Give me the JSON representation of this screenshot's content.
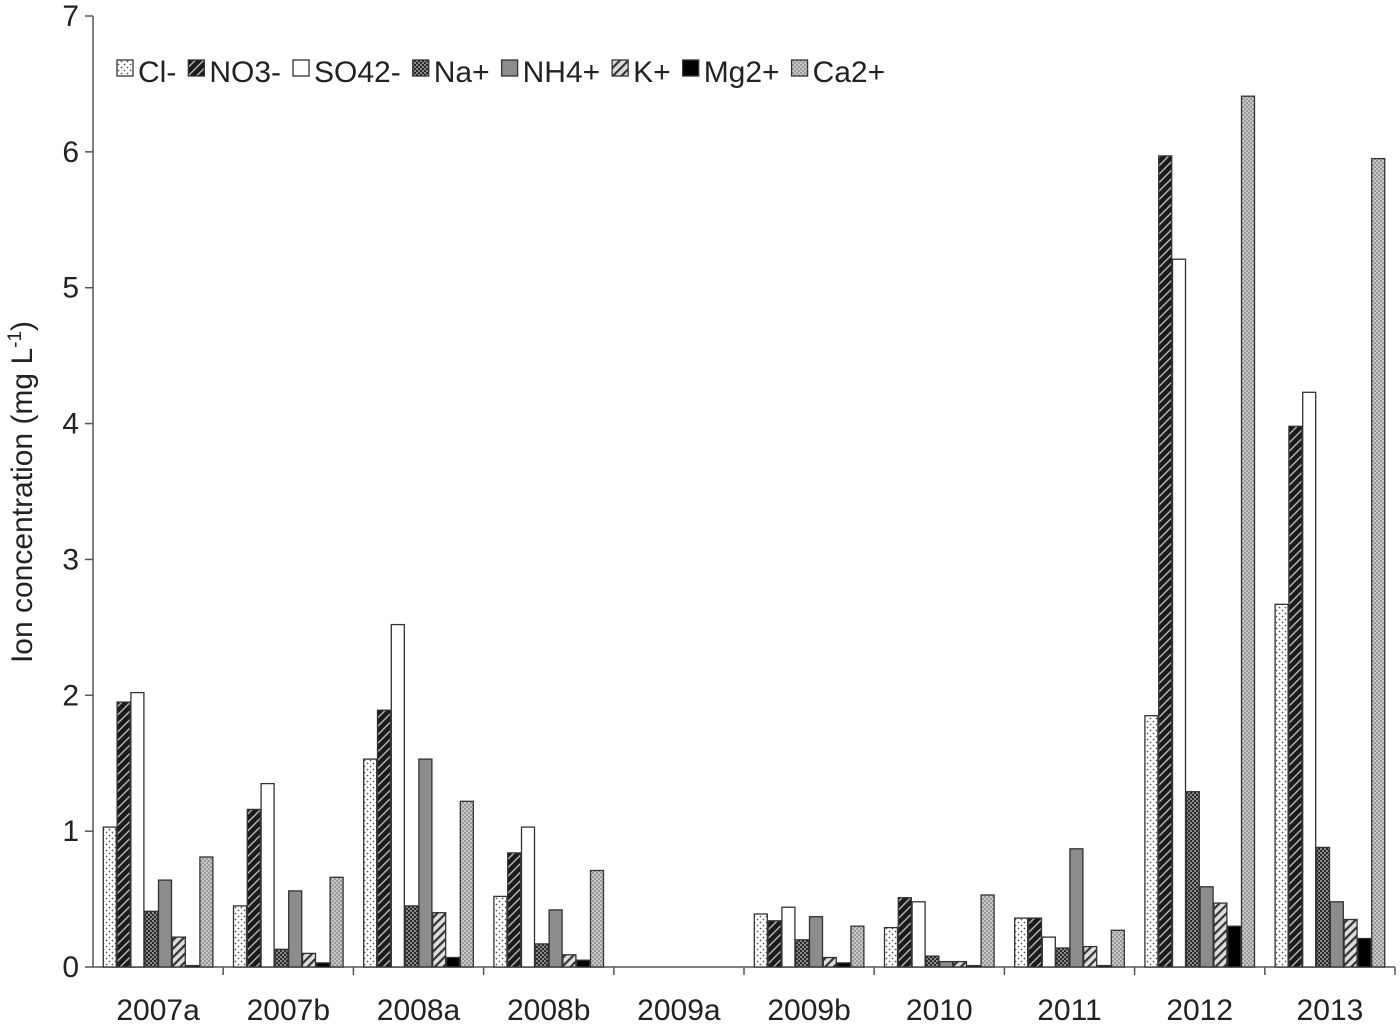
{
  "chart_data": {
    "type": "bar",
    "ylabel": "Ion concentration (mg L",
    "ylabel_sup": "-1",
    "ylabel_close": ")",
    "ylim": [
      0,
      7
    ],
    "yticks": [
      0,
      1,
      2,
      3,
      4,
      5,
      6,
      7
    ],
    "grid": false,
    "legend_position": "top-left",
    "categories": [
      "2007a",
      "2007b",
      "2008a",
      "2008b",
      "2009a",
      "2009b",
      "2010",
      "2011",
      "2012",
      "2013"
    ],
    "series": [
      {
        "name": "Cl-",
        "pattern": "dots-white",
        "values": [
          1.03,
          0.45,
          1.53,
          0.52,
          0,
          0.39,
          0.29,
          0.36,
          1.85,
          2.67
        ]
      },
      {
        "name": "NO3-",
        "pattern": "diag-dark",
        "values": [
          1.95,
          1.16,
          1.89,
          0.84,
          0,
          0.34,
          0.51,
          0.36,
          5.97,
          3.98
        ]
      },
      {
        "name": "SO42-",
        "pattern": "solid-white",
        "values": [
          2.02,
          1.35,
          2.52,
          1.03,
          0,
          0.44,
          0.48,
          0.22,
          5.21,
          4.23
        ]
      },
      {
        "name": "Na+",
        "pattern": "checker-dark",
        "values": [
          0.41,
          0.13,
          0.45,
          0.17,
          0,
          0.2,
          0.08,
          0.14,
          1.29,
          0.88
        ]
      },
      {
        "name": "NH4+",
        "pattern": "solid-gray",
        "values": [
          0.64,
          0.56,
          1.53,
          0.42,
          0,
          0.37,
          0.04,
          0.87,
          0.59,
          0.48
        ]
      },
      {
        "name": "K+",
        "pattern": "diag-light",
        "values": [
          0.22,
          0.1,
          0.4,
          0.09,
          0,
          0.07,
          0.04,
          0.15,
          0.47,
          0.35
        ]
      },
      {
        "name": "Mg2+",
        "pattern": "solid-black",
        "values": [
          0.01,
          0.03,
          0.07,
          0.05,
          0,
          0.03,
          0.01,
          0.01,
          0.3,
          0.21
        ]
      },
      {
        "name": "Ca2+",
        "pattern": "checker-light",
        "values": [
          0.81,
          0.66,
          1.22,
          0.71,
          0,
          0.3,
          0.53,
          0.27,
          6.41,
          5.95
        ]
      }
    ]
  }
}
